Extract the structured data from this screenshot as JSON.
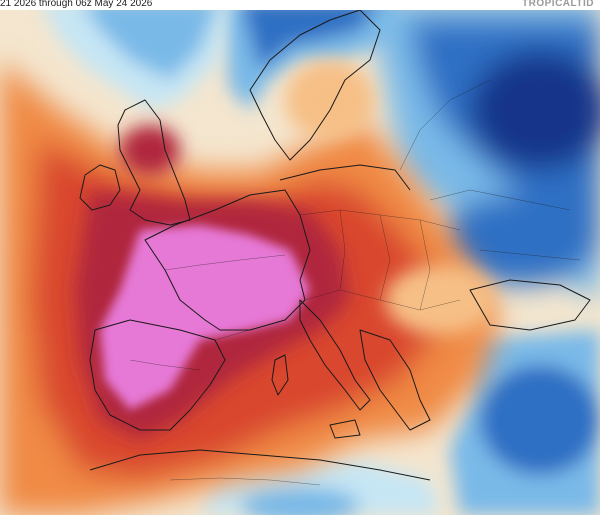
{
  "header": {
    "period_text": "21 2026 through 06z May 24 2026",
    "brand_text": "TROPICALTID"
  },
  "map": {
    "type": "temperature-anomaly",
    "region": "Europe",
    "palette": {
      "strong_warm": "#e678d6",
      "very_warm": "#b0283c",
      "warm": "#d9472d",
      "mild_warm": "#f08a45",
      "slight_warm": "#f6bf86",
      "neutral": "#ffffff",
      "slight_cool": "#c6e6f4",
      "cool": "#79b9e8",
      "cold": "#2f6fc4",
      "very_cold": "#19358a",
      "border": "#1a1a1a"
    }
  }
}
